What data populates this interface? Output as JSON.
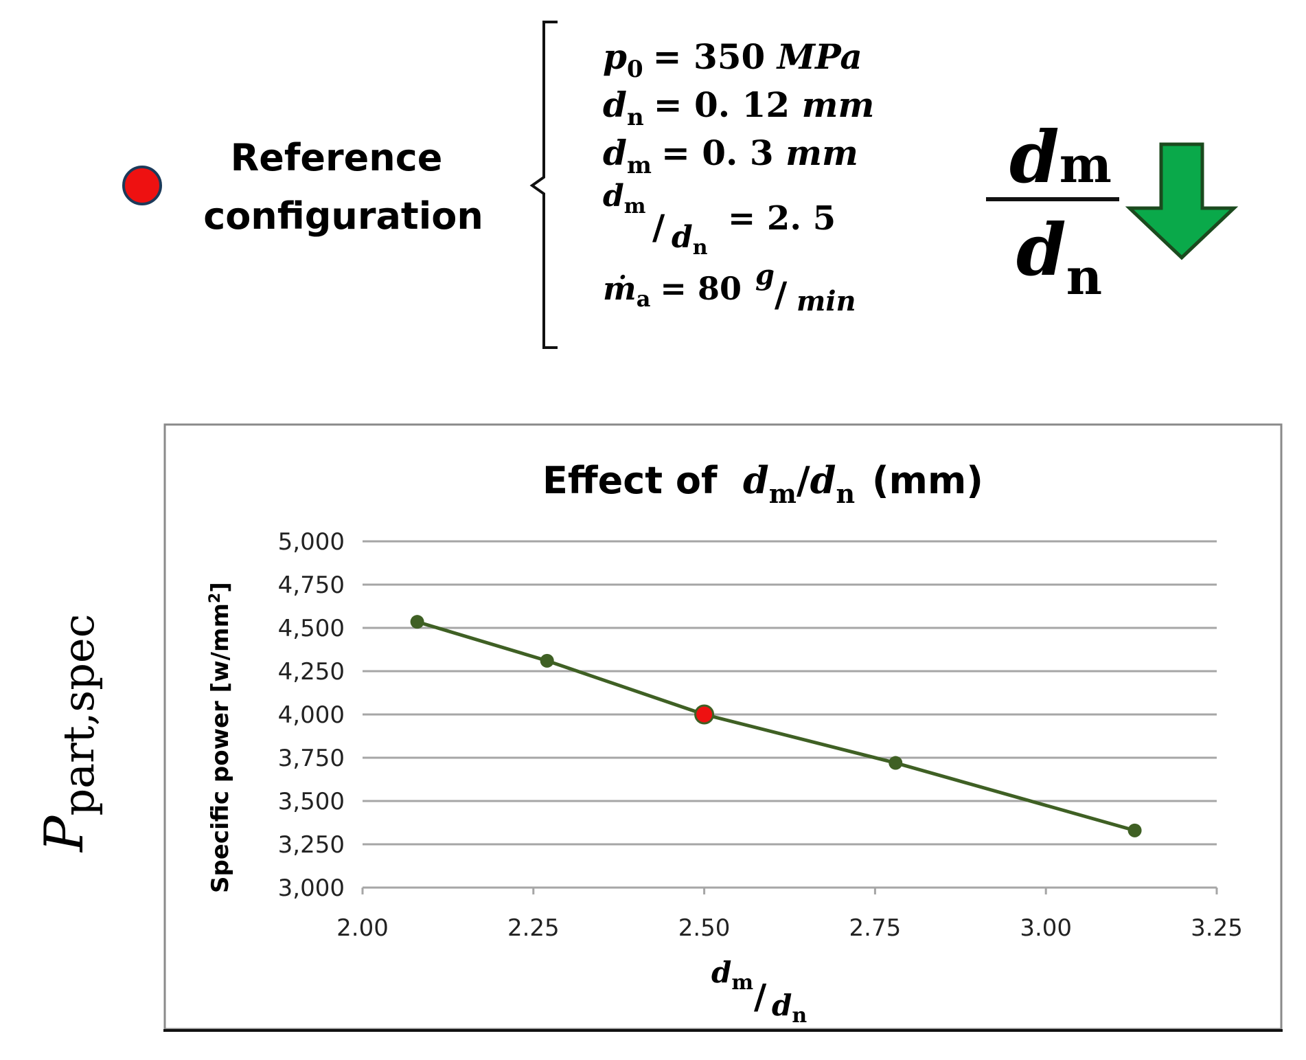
{
  "reference": {
    "label_line1": "Reference",
    "label_line2": "configuration",
    "marker_color": "#ee1111"
  },
  "params": {
    "p0_sym": "p",
    "p0_sub": "0",
    "p0_rhs": "= 350 ",
    "p0_unit": "MPa",
    "dn_sym": "d",
    "dn_sub": "n",
    "dn_rhs": "= 0. 12 ",
    "dn_unit": "mm",
    "dm_sym": "d",
    "dm_sub": "m",
    "dm_rhs": "= 0. 3 ",
    "dm_unit": "mm",
    "ratio_num_sym": "d",
    "ratio_num_sub": "m",
    "ratio_den_sym": "d",
    "ratio_den_sub": "n",
    "ratio_rhs": "= 2. 5",
    "ma_sym": "ṁ",
    "ma_sub": "a",
    "ma_rhs": "= 80 ",
    "ma_unit_num": "g",
    "ma_unit_den": "min"
  },
  "big_ratio": {
    "num_sym": "d",
    "num_sub": "m",
    "den_sym": "d",
    "den_sub": "n",
    "arrow_color": "#0aa94a",
    "arrow_meaning": "decrease"
  },
  "side_label": {
    "sym": "P",
    "sub": "part,spec"
  },
  "chart_data": {
    "type": "line",
    "title_prefix": "Effect of",
    "title_num_sym": "d",
    "title_num_sub": "m",
    "title_den_sym": "d",
    "title_den_sub": "n",
    "title_suffix": "(mm)",
    "ylabel": "Specific power [w/mm",
    "ylabel_sup": "2",
    "ylabel_end": "]",
    "xlabel_num_sym": "d",
    "xlabel_num_sub": "m",
    "xlabel_den_sym": "d",
    "xlabel_den_sub": "n",
    "xlim": [
      2.0,
      3.25
    ],
    "ylim": [
      3000,
      5000
    ],
    "xticks": [
      2.0,
      2.25,
      2.5,
      2.75,
      3.0,
      3.25
    ],
    "xtick_labels": [
      "2.00",
      "2.25",
      "2.50",
      "2.75",
      "3.00",
      "3.25"
    ],
    "yticks": [
      3000,
      3250,
      3500,
      3750,
      4000,
      4250,
      4500,
      4750,
      5000
    ],
    "ytick_labels": [
      "3,000",
      "3,250",
      "3,500",
      "3,750",
      "4,000",
      "4,250",
      "4,500",
      "4,750",
      "5,000"
    ],
    "grid": true,
    "series": [
      {
        "name": "Specific power",
        "color": "#3f6024",
        "x": [
          2.08,
          2.27,
          2.5,
          2.78,
          3.13
        ],
        "y": [
          4535,
          4310,
          4000,
          3720,
          3330
        ]
      }
    ],
    "reference_point": {
      "x": 2.5,
      "y": 4000,
      "color": "#ee1111"
    }
  }
}
